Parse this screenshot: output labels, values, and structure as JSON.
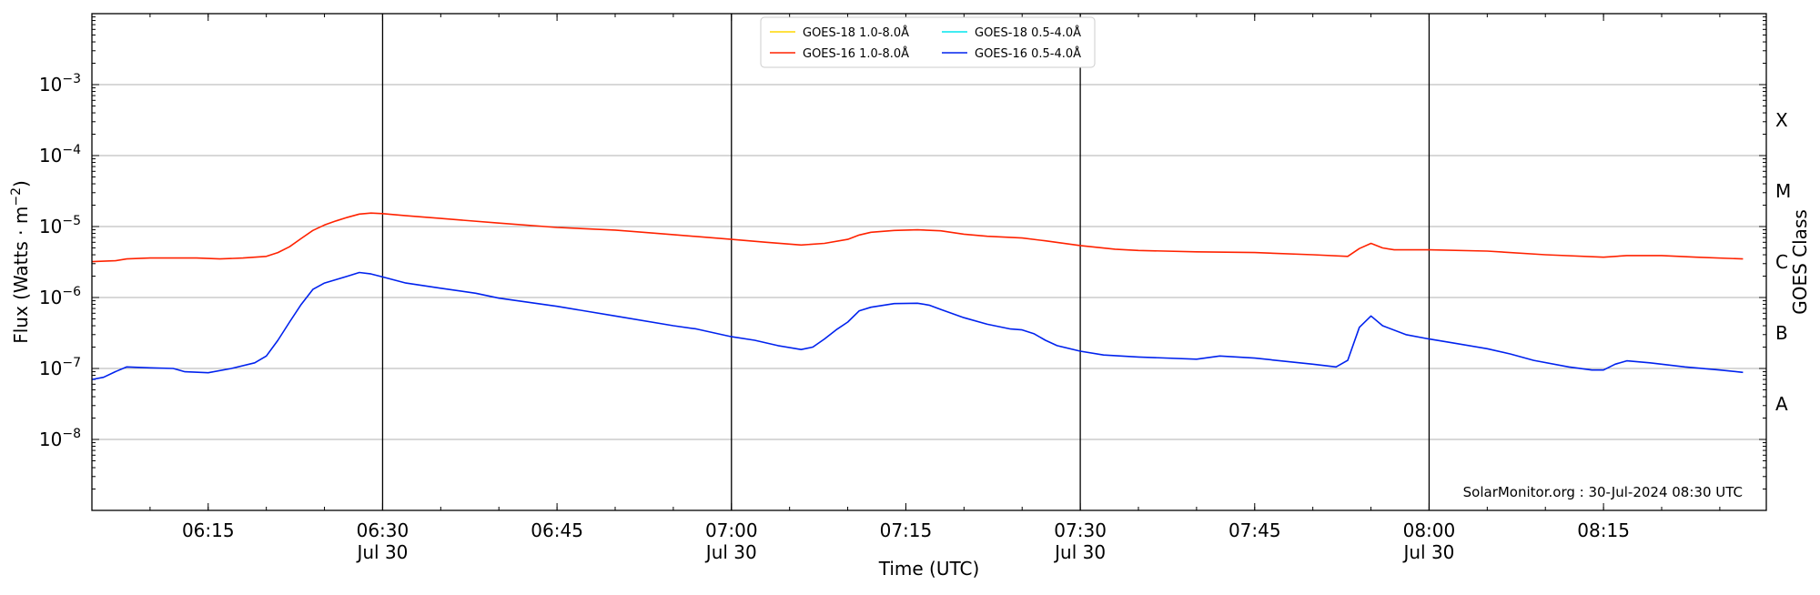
{
  "chart_data": {
    "type": "line",
    "ylabel_text": "Flux (Watts · m",
    "ylabel_sup": "−2",
    "ylabel_close": ")",
    "xlabel": "Time (UTC)",
    "right_axis_label": "GOES Class",
    "watermark": "SolarMonitor.org : 30-Jul-2024 08:30 UTC",
    "y_scale": "log",
    "ylim": [
      1e-09,
      0.01
    ],
    "xlim": [
      "06:05",
      "08:29"
    ],
    "grid": "horizontal",
    "legend_position": "top-center",
    "y_ticks": [
      {
        "value": 1e-08,
        "base": "10",
        "exp": "−8"
      },
      {
        "value": 1e-07,
        "base": "10",
        "exp": "−7"
      },
      {
        "value": 1e-06,
        "base": "10",
        "exp": "−6"
      },
      {
        "value": 1e-05,
        "base": "10",
        "exp": "−5"
      },
      {
        "value": 0.0001,
        "base": "10",
        "exp": "−4"
      },
      {
        "value": 0.001,
        "base": "10",
        "exp": "−3"
      }
    ],
    "x_ticks": [
      {
        "time": "06:15",
        "label": "06:15",
        "sublabel": ""
      },
      {
        "time": "06:30",
        "label": "06:30",
        "sublabel": "Jul 30"
      },
      {
        "time": "06:45",
        "label": "06:45",
        "sublabel": ""
      },
      {
        "time": "07:00",
        "label": "07:00",
        "sublabel": "Jul 30"
      },
      {
        "time": "07:15",
        "label": "07:15",
        "sublabel": ""
      },
      {
        "time": "07:30",
        "label": "07:30",
        "sublabel": "Jul 30"
      },
      {
        "time": "07:45",
        "label": "07:45",
        "sublabel": ""
      },
      {
        "time": "08:00",
        "label": "08:00",
        "sublabel": "Jul 30"
      },
      {
        "time": "08:15",
        "label": "08:15",
        "sublabel": ""
      }
    ],
    "vertical_lines": [
      "06:30",
      "07:00",
      "07:30",
      "08:00"
    ],
    "goes_classes": [
      {
        "label": "A",
        "from": 1e-08,
        "to": 1e-07
      },
      {
        "label": "B",
        "from": 1e-07,
        "to": 1e-06
      },
      {
        "label": "C",
        "from": 1e-06,
        "to": 1e-05
      },
      {
        "label": "M",
        "from": 1e-05,
        "to": 0.0001
      },
      {
        "label": "X",
        "from": 0.0001,
        "to": 0.001
      }
    ],
    "series": [
      {
        "name": "GOES-18 1.0-8.0Å",
        "color": "#ffd700",
        "points": []
      },
      {
        "name": "GOES-18 0.5-4.0Å",
        "color": "#00e5ee",
        "points": []
      },
      {
        "name": "GOES-16 1.0-8.0Å",
        "color": "#ff2200",
        "points": [
          [
            "06:05",
            3.2e-06
          ],
          [
            "06:07",
            3.3e-06
          ],
          [
            "06:08",
            3.5e-06
          ],
          [
            "06:10",
            3.6e-06
          ],
          [
            "06:12",
            3.6e-06
          ],
          [
            "06:14",
            3.6e-06
          ],
          [
            "06:16",
            3.5e-06
          ],
          [
            "06:18",
            3.6e-06
          ],
          [
            "06:20",
            3.8e-06
          ],
          [
            "06:21",
            4.3e-06
          ],
          [
            "06:22",
            5.2e-06
          ],
          [
            "06:23",
            6.8e-06
          ],
          [
            "06:24",
            8.8e-06
          ],
          [
            "06:25",
            1.05e-05
          ],
          [
            "06:26",
            1.2e-05
          ],
          [
            "06:27",
            1.35e-05
          ],
          [
            "06:28",
            1.5e-05
          ],
          [
            "06:29",
            1.55e-05
          ],
          [
            "06:30",
            1.52e-05
          ],
          [
            "06:32",
            1.42e-05
          ],
          [
            "06:35",
            1.3e-05
          ],
          [
            "06:40",
            1.12e-05
          ],
          [
            "06:45",
            9.7e-06
          ],
          [
            "06:50",
            8.9e-06
          ],
          [
            "06:55",
            7.7e-06
          ],
          [
            "07:00",
            6.6e-06
          ],
          [
            "07:03",
            6e-06
          ],
          [
            "07:06",
            5.5e-06
          ],
          [
            "07:08",
            5.8e-06
          ],
          [
            "07:10",
            6.6e-06
          ],
          [
            "07:11",
            7.6e-06
          ],
          [
            "07:12",
            8.3e-06
          ],
          [
            "07:14",
            8.8e-06
          ],
          [
            "07:16",
            9e-06
          ],
          [
            "07:18",
            8.7e-06
          ],
          [
            "07:20",
            7.8e-06
          ],
          [
            "07:22",
            7.3e-06
          ],
          [
            "07:25",
            6.9e-06
          ],
          [
            "07:27",
            6.3e-06
          ],
          [
            "07:30",
            5.4e-06
          ],
          [
            "07:33",
            4.8e-06
          ],
          [
            "07:35",
            4.6e-06
          ],
          [
            "07:40",
            4.4e-06
          ],
          [
            "07:45",
            4.3e-06
          ],
          [
            "07:50",
            4e-06
          ],
          [
            "07:53",
            3.8e-06
          ],
          [
            "07:54",
            4.9e-06
          ],
          [
            "07:55",
            5.8e-06
          ],
          [
            "07:56",
            5e-06
          ],
          [
            "07:57",
            4.7e-06
          ],
          [
            "08:00",
            4.7e-06
          ],
          [
            "08:05",
            4.5e-06
          ],
          [
            "08:10",
            4e-06
          ],
          [
            "08:15",
            3.7e-06
          ],
          [
            "08:17",
            3.9e-06
          ],
          [
            "08:20",
            3.9e-06
          ],
          [
            "08:23",
            3.7e-06
          ],
          [
            "08:27",
            3.5e-06
          ]
        ]
      },
      {
        "name": "GOES-16 0.5-4.0Å",
        "color": "#0022ee",
        "points": [
          [
            "06:05",
            7e-08
          ],
          [
            "06:06",
            7.5e-08
          ],
          [
            "06:07",
            9e-08
          ],
          [
            "06:08",
            1.05e-07
          ],
          [
            "06:10",
            1.02e-07
          ],
          [
            "06:12",
            1e-07
          ],
          [
            "06:13",
            9e-08
          ],
          [
            "06:15",
            8.7e-08
          ],
          [
            "06:17",
            1e-07
          ],
          [
            "06:19",
            1.2e-07
          ],
          [
            "06:20",
            1.5e-07
          ],
          [
            "06:21",
            2.5e-07
          ],
          [
            "06:22",
            4.5e-07
          ],
          [
            "06:23",
            8e-07
          ],
          [
            "06:24",
            1.3e-06
          ],
          [
            "06:25",
            1.6e-06
          ],
          [
            "06:27",
            2e-06
          ],
          [
            "06:28",
            2.25e-06
          ],
          [
            "06:29",
            2.15e-06
          ],
          [
            "06:30",
            1.95e-06
          ],
          [
            "06:32",
            1.6e-06
          ],
          [
            "06:35",
            1.35e-06
          ],
          [
            "06:38",
            1.15e-06
          ],
          [
            "06:40",
            9.8e-07
          ],
          [
            "06:45",
            7.5e-07
          ],
          [
            "06:50",
            5.5e-07
          ],
          [
            "06:55",
            4e-07
          ],
          [
            "06:57",
            3.6e-07
          ],
          [
            "07:00",
            2.8e-07
          ],
          [
            "07:02",
            2.5e-07
          ],
          [
            "07:04",
            2.1e-07
          ],
          [
            "07:06",
            1.85e-07
          ],
          [
            "07:07",
            2e-07
          ],
          [
            "07:08",
            2.6e-07
          ],
          [
            "07:09",
            3.5e-07
          ],
          [
            "07:10",
            4.5e-07
          ],
          [
            "07:11",
            6.5e-07
          ],
          [
            "07:12",
            7.3e-07
          ],
          [
            "07:14",
            8.2e-07
          ],
          [
            "07:16",
            8.3e-07
          ],
          [
            "07:17",
            7.8e-07
          ],
          [
            "07:18",
            6.8e-07
          ],
          [
            "07:20",
            5.2e-07
          ],
          [
            "07:22",
            4.2e-07
          ],
          [
            "07:24",
            3.6e-07
          ],
          [
            "07:25",
            3.5e-07
          ],
          [
            "07:26",
            3.1e-07
          ],
          [
            "07:27",
            2.5e-07
          ],
          [
            "07:28",
            2.1e-07
          ],
          [
            "07:30",
            1.75e-07
          ],
          [
            "07:32",
            1.55e-07
          ],
          [
            "07:35",
            1.45e-07
          ],
          [
            "07:40",
            1.35e-07
          ],
          [
            "07:42",
            1.5e-07
          ],
          [
            "07:45",
            1.4e-07
          ],
          [
            "07:50",
            1.15e-07
          ],
          [
            "07:52",
            1.05e-07
          ],
          [
            "07:53",
            1.3e-07
          ],
          [
            "07:54",
            3.8e-07
          ],
          [
            "07:55",
            5.5e-07
          ],
          [
            "07:56",
            4e-07
          ],
          [
            "07:58",
            3e-07
          ],
          [
            "08:00",
            2.6e-07
          ],
          [
            "08:02",
            2.3e-07
          ],
          [
            "08:05",
            1.9e-07
          ],
          [
            "08:07",
            1.6e-07
          ],
          [
            "08:09",
            1.3e-07
          ],
          [
            "08:12",
            1.05e-07
          ],
          [
            "08:14",
            9.5e-08
          ],
          [
            "08:15",
            9.5e-08
          ],
          [
            "08:16",
            1.15e-07
          ],
          [
            "08:17",
            1.28e-07
          ],
          [
            "08:19",
            1.2e-07
          ],
          [
            "08:22",
            1.05e-07
          ],
          [
            "08:25",
            9.5e-08
          ],
          [
            "08:27",
            8.8e-08
          ]
        ]
      }
    ]
  }
}
